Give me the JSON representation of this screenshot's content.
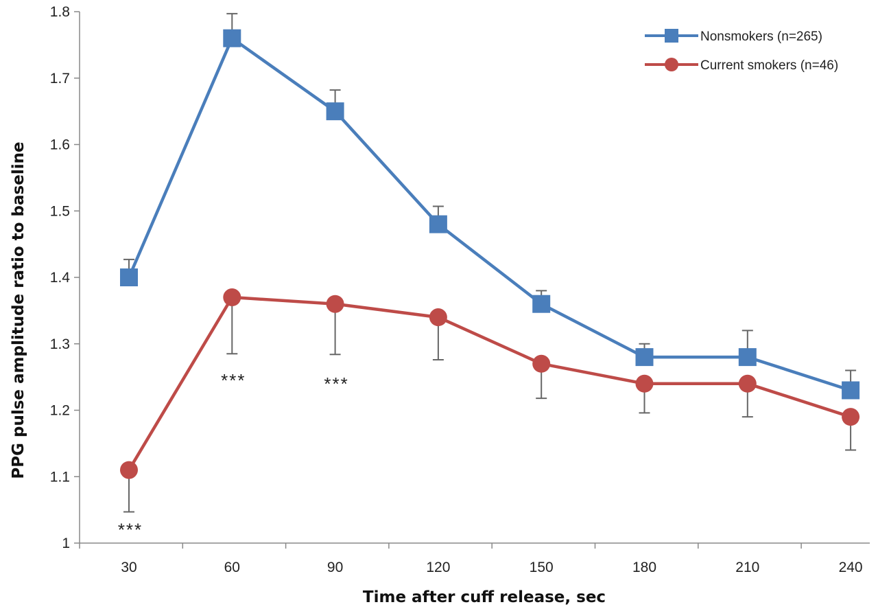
{
  "chart_data": {
    "type": "line",
    "xlabel": "Time after cuff release, sec",
    "ylabel": "PPG pulse amplitude ratio to baseline",
    "x": [
      30,
      60,
      90,
      120,
      150,
      180,
      210,
      240
    ],
    "xticks": [
      "30",
      "60",
      "90",
      "120",
      "150",
      "180",
      "210",
      "240"
    ],
    "ylim": [
      1,
      1.8
    ],
    "yticks": [
      "1",
      "1.1",
      "1.2",
      "1.3",
      "1.4",
      "1.5",
      "1.6",
      "1.7",
      "1.8"
    ],
    "grid": false,
    "legend_position": "top-right",
    "series": [
      {
        "name": "Nonsmokers (n=265)",
        "color": "#4a7ebb",
        "marker": "square",
        "values": [
          1.4,
          1.76,
          1.65,
          1.48,
          1.36,
          1.28,
          1.28,
          1.23
        ],
        "error_dir": "up",
        "errors": [
          0.027,
          0.037,
          0.032,
          0.027,
          0.02,
          0.02,
          0.04,
          0.03
        ]
      },
      {
        "name": "Current smokers (n=46)",
        "color": "#be4b48",
        "marker": "circle",
        "values": [
          1.11,
          1.37,
          1.36,
          1.34,
          1.27,
          1.24,
          1.24,
          1.19
        ],
        "error_dir": "down",
        "errors": [
          0.063,
          0.085,
          0.076,
          0.064,
          0.052,
          0.044,
          0.05,
          0.05
        ]
      }
    ],
    "annotations": [
      {
        "text": "***",
        "x": 30,
        "y": 1.02
      },
      {
        "text": "***",
        "x": 60,
        "y": 1.245
      },
      {
        "text": "***",
        "x": 90,
        "y": 1.24
      }
    ]
  }
}
